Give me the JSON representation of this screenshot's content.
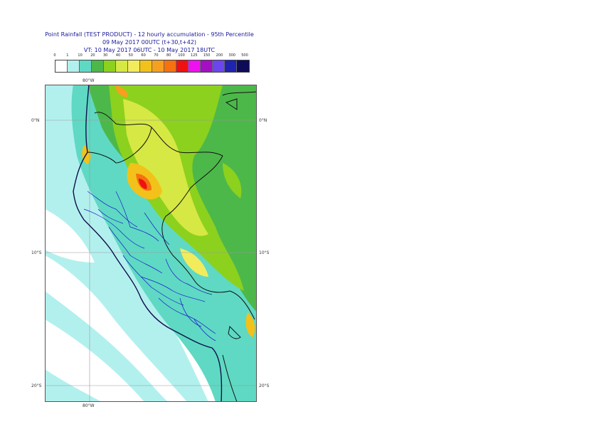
{
  "title": {
    "line1": "Point Rainfall (TEST PRODUCT) - 12 hourly accumulation - 95th Percentile",
    "line2": "09 May 2017 00UTC (t+30,t+42)",
    "line3": "VT: 10 May 2017 06UTC - 10 May 2017 18UTC"
  },
  "legend": {
    "thresholds": [
      "0",
      "1",
      "10",
      "20",
      "30",
      "40",
      "50",
      "60",
      "70",
      "80",
      "100",
      "125",
      "150",
      "200",
      "300",
      "500"
    ],
    "colors": [
      "#ffffff",
      "#b2f0ee",
      "#5fd9c3",
      "#4db84a",
      "#8cd11e",
      "#d6e843",
      "#f2ec5c",
      "#f2c21a",
      "#f5a01e",
      "#f5720f",
      "#ee1111",
      "#ef11ef",
      "#a40fc4",
      "#6b46ef",
      "#1f23b0",
      "#0e0b57"
    ]
  },
  "map": {
    "lon_label_top": "80°W",
    "lon_label_bottom": "80°W",
    "lat_labels": [
      "0°N",
      "10°S",
      "20°S"
    ]
  }
}
